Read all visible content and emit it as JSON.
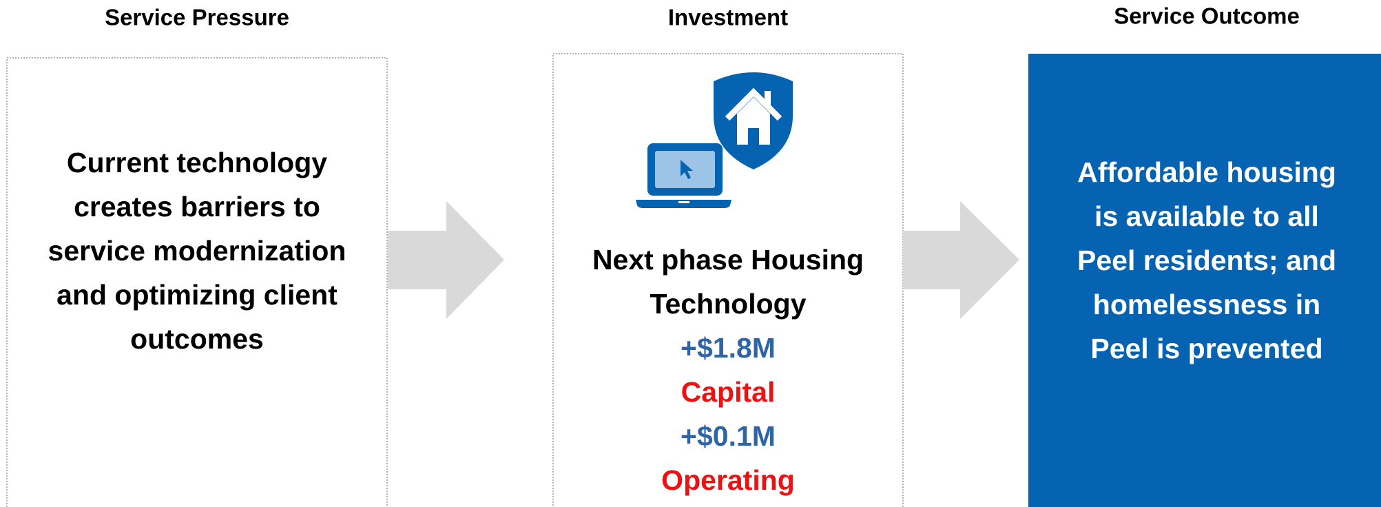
{
  "columns": [
    {
      "heading": "Service Pressure",
      "lines": [
        "Current technology",
        "creates barriers to",
        "service modernization",
        "and optimizing client",
        "outcomes"
      ]
    },
    {
      "heading": "Investment",
      "lines": [
        "Next phase Housing",
        "Technology"
      ],
      "items": [
        {
          "amount": "+$1.8M",
          "kind": "Capital"
        },
        {
          "amount": "+$0.1M",
          "kind": "Operating"
        }
      ]
    },
    {
      "heading": "Service Outcome",
      "lines": [
        "Affordable housing",
        "is available to all",
        "Peel residents; and",
        "homelessness in",
        "Peel is prevented"
      ]
    }
  ]
}
